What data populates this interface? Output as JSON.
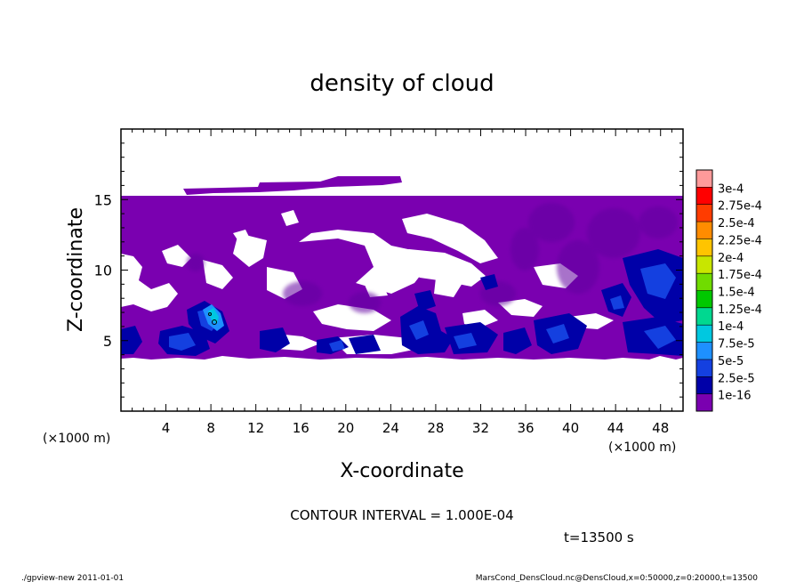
{
  "chart_data": {
    "type": "heatmap",
    "title": "density of cloud",
    "xlabel": "X-coordinate",
    "ylabel": "Z-coordinate",
    "x_unit": "(×1000 m)",
    "y_unit": "(×1000 m)",
    "xlim": [
      0,
      50
    ],
    "ylim": [
      0,
      20
    ],
    "x_ticks": [
      4,
      8,
      12,
      16,
      20,
      24,
      28,
      32,
      36,
      40,
      44,
      48
    ],
    "y_ticks": [
      5,
      10,
      15
    ],
    "grid": false,
    "legend": "colorbar-right",
    "colorbar": {
      "levels": [
        "1e-16",
        "2.5e-5",
        "5e-5",
        "7.5e-5",
        "1e-4",
        "1.25e-4",
        "1.5e-4",
        "1.75e-4",
        "2e-4",
        "2.25e-4",
        "2.5e-4",
        "2.75e-4",
        "3e-4"
      ],
      "colors": [
        "#7a00b0",
        "#0000a8",
        "#1440e0",
        "#1e90ff",
        "#00c8e0",
        "#00d890",
        "#00c800",
        "#70dc00",
        "#c8e600",
        "#ffc400",
        "#ff8c00",
        "#ff3c00",
        "#ff0000",
        "#ff9a9a"
      ]
    },
    "regions": {
      "cloud_layer_z": [
        4,
        15.3
      ],
      "upper_patch": {
        "x": [
          6.5,
          24.6
        ],
        "z": [
          15.3,
          16.4
        ]
      },
      "dense_low_clouds_z": [
        4,
        6
      ],
      "max_value_near": {
        "x": 8.5,
        "z": 6.8
      }
    },
    "contour_interval": "CONTOUR INTERVAL = 1.000E-04",
    "time": "t=13500 s"
  },
  "footer": {
    "left": "./gpview-new  2011-01-01",
    "right": "MarsCond_DensCloud.nc@DensCloud,x=0:50000,z=0:20000,t=13500"
  }
}
